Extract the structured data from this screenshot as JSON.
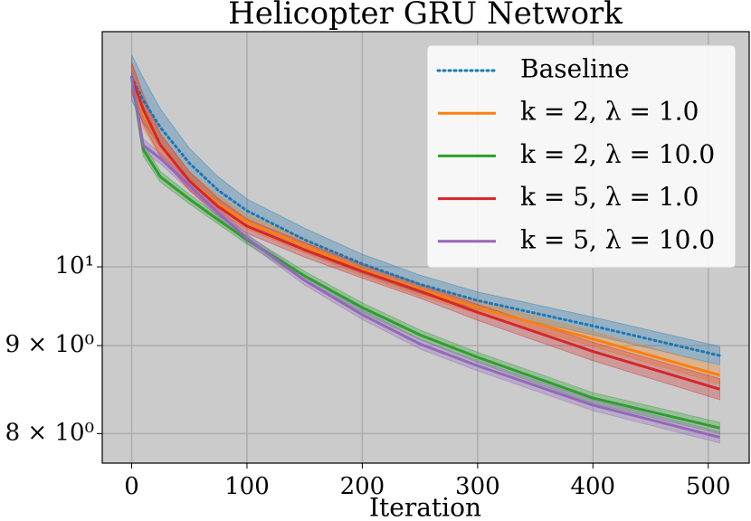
{
  "chart_data": {
    "type": "line",
    "title": "Helicopter GRU Network",
    "x_label": "Iteration",
    "x": [
      0,
      10,
      25,
      50,
      75,
      100,
      150,
      200,
      250,
      300,
      400,
      510
    ],
    "xlim": [
      -25.5,
      535.5
    ],
    "xticks": [
      0,
      100,
      200,
      300,
      400,
      500
    ],
    "ylim": [
      7.69,
      13.7
    ],
    "y_scale": "log",
    "yticks": [
      {
        "value": 8,
        "label": "8 × 10⁰"
      },
      {
        "value": 9,
        "label": "9 × 10⁰"
      },
      {
        "value": 10,
        "label": "10¹"
      }
    ],
    "grid": true,
    "legend": "upper right",
    "series": [
      {
        "name": "Baseline",
        "color": "#1f77b4",
        "linestyle": "dotted",
        "values": [
          12.89,
          12.5,
          12.05,
          11.49,
          11.08,
          10.78,
          10.37,
          10.04,
          9.77,
          9.56,
          9.24,
          8.88
        ],
        "upper": [
          13.28,
          12.88,
          12.35,
          11.72,
          11.28,
          10.95,
          10.53,
          10.17,
          9.89,
          9.67,
          9.35,
          8.99
        ],
        "lower": [
          12.5,
          12.13,
          11.75,
          11.26,
          10.88,
          10.61,
          10.21,
          9.91,
          9.65,
          9.45,
          9.13,
          8.77
        ]
      },
      {
        "name": "k = 2, λ = 1.0",
        "color": "#ff7f0e",
        "linestyle": "solid",
        "values": [
          12.89,
          12.28,
          11.77,
          11.22,
          10.88,
          10.62,
          10.28,
          9.96,
          9.7,
          9.47,
          9.08,
          8.65
        ],
        "upper": [
          13.15,
          12.53,
          11.95,
          11.36,
          11.0,
          10.72,
          10.37,
          10.04,
          9.78,
          9.55,
          9.17,
          8.75
        ],
        "lower": [
          12.63,
          12.03,
          11.59,
          11.08,
          10.76,
          10.52,
          10.19,
          9.88,
          9.62,
          9.39,
          8.99,
          8.55
        ]
      },
      {
        "name": "k = 2, λ = 10.0",
        "color": "#2ca02c",
        "linestyle": "solid",
        "values": [
          12.89,
          11.7,
          11.28,
          10.95,
          10.65,
          10.37,
          9.88,
          9.47,
          9.13,
          8.86,
          8.39,
          8.06
        ],
        "upper": [
          13.0,
          11.8,
          11.36,
          11.02,
          10.71,
          10.43,
          9.94,
          9.53,
          9.19,
          8.92,
          8.45,
          8.12
        ],
        "lower": [
          12.78,
          11.6,
          11.2,
          10.88,
          10.59,
          10.31,
          9.82,
          9.41,
          9.07,
          8.8,
          8.33,
          8.0
        ]
      },
      {
        "name": "k = 5, λ = 1.0",
        "color": "#d62728",
        "linestyle": "solid",
        "values": [
          12.89,
          12.35,
          11.77,
          11.22,
          10.84,
          10.56,
          10.23,
          9.94,
          9.68,
          9.41,
          8.93,
          8.49
        ],
        "upper": [
          13.15,
          12.6,
          11.95,
          11.36,
          10.96,
          10.66,
          10.33,
          10.03,
          9.77,
          9.51,
          9.04,
          8.61
        ],
        "lower": [
          12.63,
          12.1,
          11.59,
          11.08,
          10.72,
          10.46,
          10.13,
          9.85,
          9.59,
          9.31,
          8.82,
          8.37
        ]
      },
      {
        "name": "k = 5, λ = 10.0",
        "color": "#9467bd",
        "linestyle": "solid",
        "values": [
          12.89,
          11.77,
          11.56,
          11.15,
          10.75,
          10.39,
          9.82,
          9.38,
          9.02,
          8.76,
          8.31,
          7.96
        ],
        "upper": [
          13.0,
          11.87,
          11.64,
          11.22,
          10.81,
          10.45,
          9.88,
          9.44,
          9.08,
          8.82,
          8.37,
          8.02
        ],
        "lower": [
          12.78,
          11.67,
          11.48,
          11.08,
          10.69,
          10.33,
          9.76,
          9.32,
          8.96,
          8.7,
          8.25,
          7.9
        ]
      }
    ]
  }
}
